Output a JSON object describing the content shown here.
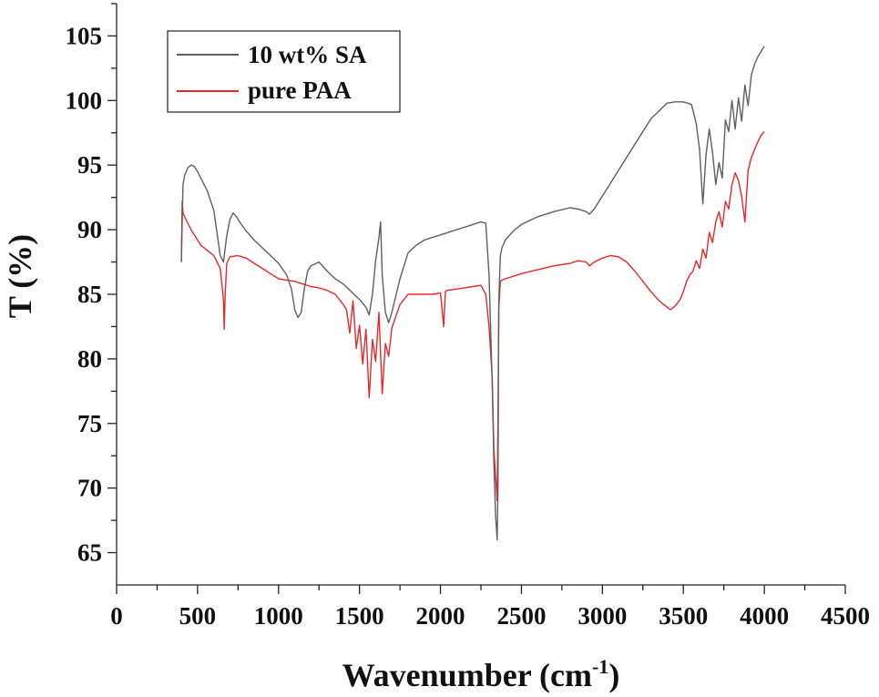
{
  "chart_data": {
    "type": "line",
    "title": "",
    "xlabel": "Wavenumber (cm",
    "xlabel_sup": "-1",
    "xlabel_close": ")",
    "ylabel": "T (%)",
    "xlim": [
      0,
      4500
    ],
    "ylim": [
      62.5,
      107.5
    ],
    "x_ticks": [
      0,
      500,
      1000,
      1500,
      2000,
      2500,
      3000,
      3500,
      4000,
      4500
    ],
    "y_ticks": [
      65,
      70,
      75,
      80,
      85,
      90,
      95,
      100,
      105
    ],
    "grid": false,
    "legend_position": "top-left",
    "series": [
      {
        "name": "10 wt% SA",
        "color": "#5f5f5f",
        "x": [
          400,
          410,
          420,
          440,
          460,
          480,
          500,
          520,
          560,
          600,
          640,
          660,
          670,
          680,
          700,
          720,
          740,
          760,
          800,
          850,
          900,
          950,
          1000,
          1050,
          1080,
          1100,
          1120,
          1140,
          1160,
          1180,
          1200,
          1250,
          1300,
          1350,
          1400,
          1450,
          1500,
          1540,
          1560,
          1580,
          1600,
          1620,
          1630,
          1640,
          1660,
          1680,
          1700,
          1750,
          1800,
          1850,
          1900,
          1950,
          2000,
          2050,
          2100,
          2150,
          2200,
          2250,
          2280,
          2300,
          2320,
          2330,
          2340,
          2350,
          2355,
          2360,
          2370,
          2380,
          2400,
          2450,
          2500,
          2600,
          2700,
          2800,
          2850,
          2900,
          2920,
          2950,
          3000,
          3100,
          3200,
          3300,
          3400,
          3450,
          3500,
          3550,
          3580,
          3600,
          3620,
          3640,
          3660,
          3680,
          3700,
          3720,
          3740,
          3760,
          3780,
          3800,
          3820,
          3840,
          3860,
          3880,
          3900,
          3920,
          3940,
          3960,
          3980,
          4000
        ],
        "y": [
          87.5,
          93.5,
          94.2,
          94.8,
          95.0,
          94.9,
          94.5,
          94.0,
          93.0,
          91.5,
          88.0,
          87.5,
          88.5,
          89.5,
          90.8,
          91.3,
          91.0,
          90.6,
          89.9,
          89.2,
          88.6,
          88.0,
          87.4,
          86.5,
          85.4,
          83.8,
          83.2,
          83.6,
          85.5,
          86.8,
          87.2,
          87.5,
          86.8,
          86.2,
          85.8,
          85.2,
          84.6,
          84.0,
          83.4,
          85.0,
          87.6,
          89.4,
          90.6,
          86.5,
          83.6,
          82.8,
          83.6,
          86.2,
          88.2,
          88.8,
          89.2,
          89.4,
          89.6,
          89.8,
          90.0,
          90.2,
          90.4,
          90.6,
          90.5,
          86.5,
          78.0,
          72.0,
          68.0,
          66.0,
          70.0,
          84.5,
          88.0,
          88.6,
          89.2,
          89.9,
          90.4,
          91.0,
          91.4,
          91.7,
          91.6,
          91.4,
          91.2,
          91.6,
          92.6,
          94.6,
          96.6,
          98.6,
          99.8,
          99.9,
          99.9,
          99.7,
          98.2,
          96.2,
          92.0,
          95.8,
          97.8,
          96.0,
          93.5,
          95.2,
          94.0,
          98.5,
          97.6,
          100.0,
          97.8,
          100.2,
          98.4,
          101.2,
          99.6,
          102.0,
          102.8,
          103.4,
          103.8,
          104.2
        ]
      },
      {
        "name": "pure PAA",
        "color": "#e8282a",
        "x": [
          400,
          405,
          410,
          420,
          440,
          460,
          480,
          500,
          520,
          560,
          600,
          640,
          660,
          665,
          670,
          680,
          700,
          750,
          800,
          850,
          900,
          950,
          1000,
          1050,
          1100,
          1150,
          1200,
          1250,
          1300,
          1350,
          1400,
          1420,
          1440,
          1460,
          1480,
          1500,
          1520,
          1540,
          1560,
          1580,
          1600,
          1620,
          1640,
          1660,
          1680,
          1700,
          1750,
          1800,
          1850,
          1900,
          1950,
          2000,
          2020,
          2030,
          2040,
          2100,
          2150,
          2200,
          2250,
          2280,
          2300,
          2320,
          2330,
          2340,
          2350,
          2355,
          2360,
          2370,
          2380,
          2400,
          2450,
          2500,
          2600,
          2700,
          2800,
          2850,
          2900,
          2920,
          2950,
          3000,
          3050,
          3100,
          3150,
          3200,
          3250,
          3300,
          3350,
          3400,
          3420,
          3450,
          3480,
          3500,
          3520,
          3540,
          3560,
          3580,
          3600,
          3620,
          3640,
          3660,
          3680,
          3700,
          3720,
          3740,
          3760,
          3780,
          3800,
          3820,
          3840,
          3860,
          3880,
          3900,
          3920,
          3940,
          3960,
          3980,
          4000
        ],
        "y": [
          87.5,
          92.2,
          91.3,
          91.0,
          90.5,
          90.0,
          89.6,
          89.2,
          88.8,
          88.4,
          88.0,
          87.0,
          84.6,
          82.3,
          84.8,
          87.4,
          87.9,
          88.0,
          87.8,
          87.4,
          87.0,
          86.6,
          86.2,
          86.1,
          86.0,
          85.8,
          85.6,
          85.5,
          85.3,
          85.0,
          84.2,
          83.8,
          82.0,
          84.5,
          80.8,
          82.6,
          79.6,
          82.3,
          77.0,
          81.5,
          79.8,
          83.6,
          77.3,
          81.2,
          80.2,
          82.4,
          84.2,
          85.0,
          85.0,
          85.0,
          85.0,
          85.1,
          82.5,
          85.2,
          85.3,
          85.4,
          85.5,
          85.6,
          85.7,
          85.0,
          82.5,
          78.5,
          73.0,
          71.0,
          69.0,
          75.5,
          84.0,
          86.0,
          86.1,
          86.2,
          86.4,
          86.6,
          86.9,
          87.2,
          87.4,
          87.6,
          87.5,
          87.2,
          87.5,
          87.8,
          88.0,
          87.9,
          87.5,
          86.8,
          86.0,
          85.2,
          84.5,
          84.0,
          83.8,
          84.1,
          84.6,
          85.2,
          86.0,
          86.5,
          86.8,
          87.6,
          87.0,
          88.5,
          87.8,
          89.8,
          89.0,
          90.6,
          91.4,
          90.2,
          92.2,
          91.6,
          93.5,
          94.4,
          93.8,
          92.6,
          90.6,
          94.6,
          95.6,
          96.2,
          96.8,
          97.3,
          97.6
        ]
      }
    ]
  }
}
